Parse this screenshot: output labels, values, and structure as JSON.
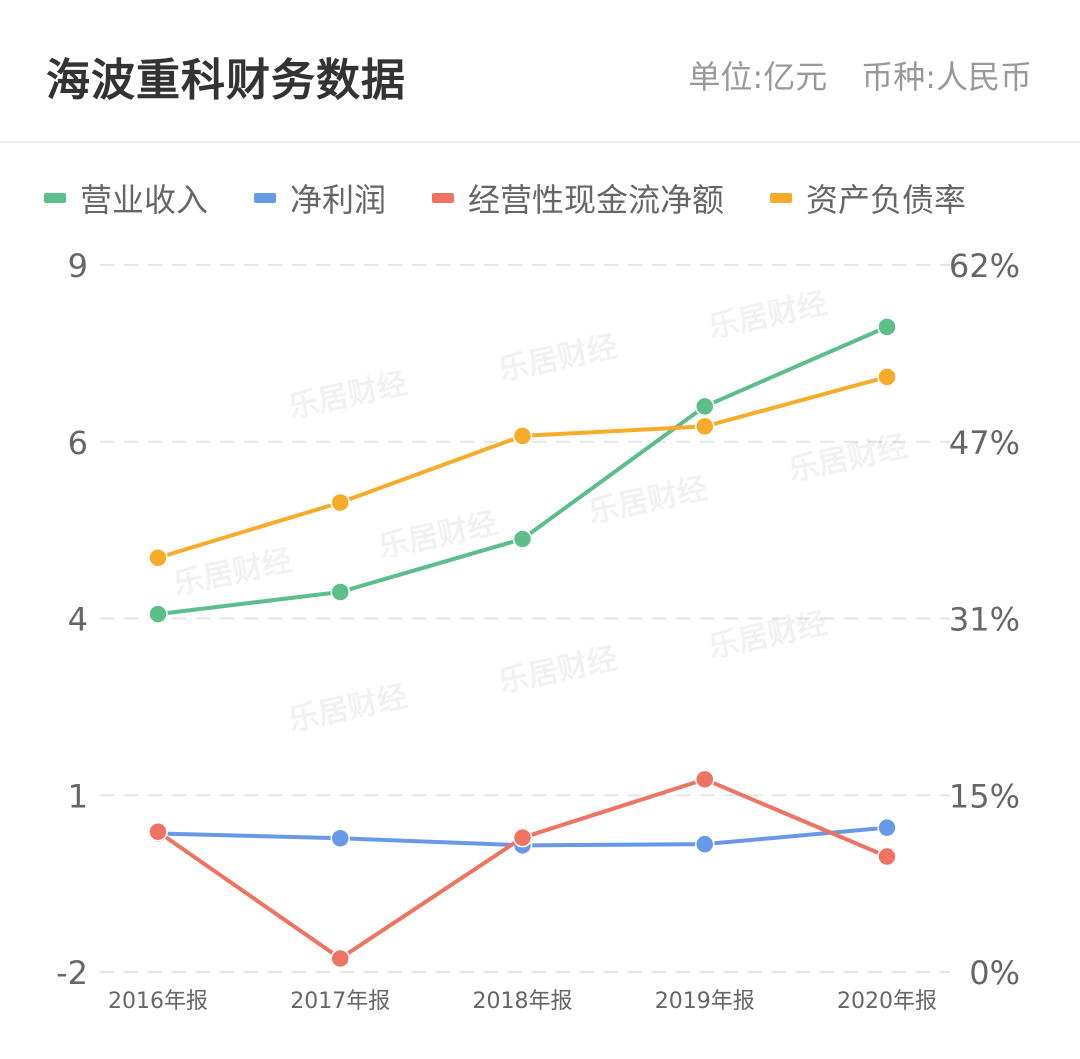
{
  "header": {
    "title": "海波重科财务数据",
    "unit": "单位:亿元",
    "currency": "币种:人民币"
  },
  "colors": {
    "revenue": "#5cbf8a",
    "net_profit": "#6899e8",
    "operating_cash_flow": "#ef7362",
    "debt_ratio": "#f8ab29",
    "grid": "#e6e6e6",
    "axis_text": "#666666"
  },
  "chart_data": {
    "type": "line",
    "title": "海波重科财务数据",
    "categories": [
      "2016年报",
      "2017年报",
      "2018年报",
      "2019年报",
      "2020年报"
    ],
    "y_left": {
      "ticks": [
        "9",
        "6",
        "4",
        "1",
        "-2"
      ],
      "range": [
        -2,
        9
      ]
    },
    "y_right": {
      "ticks": [
        "62%",
        "47%",
        "31%",
        "15%",
        "0%"
      ],
      "range": [
        0,
        62
      ]
    },
    "grid": true,
    "legend_position": "top-left",
    "series": [
      {
        "name": "营业收入",
        "axis": "left",
        "color_key": "revenue",
        "values": [
          4.05,
          4.3,
          4.9,
          6.6,
          7.95
        ]
      },
      {
        "name": "净利润",
        "axis": "left",
        "color_key": "net_profit",
        "values": [
          0.35,
          0.27,
          0.15,
          0.17,
          0.45
        ]
      },
      {
        "name": "经营性现金流净额",
        "axis": "left",
        "color_key": "operating_cash_flow",
        "values": [
          0.38,
          -1.77,
          0.28,
          1.27,
          -0.04
        ]
      },
      {
        "name": "资产负债率",
        "axis": "right",
        "color_key": "debt_ratio",
        "values": [
          36.5,
          41.5,
          47.5,
          48.3,
          52.5
        ]
      }
    ]
  },
  "watermark": "乐居财经"
}
